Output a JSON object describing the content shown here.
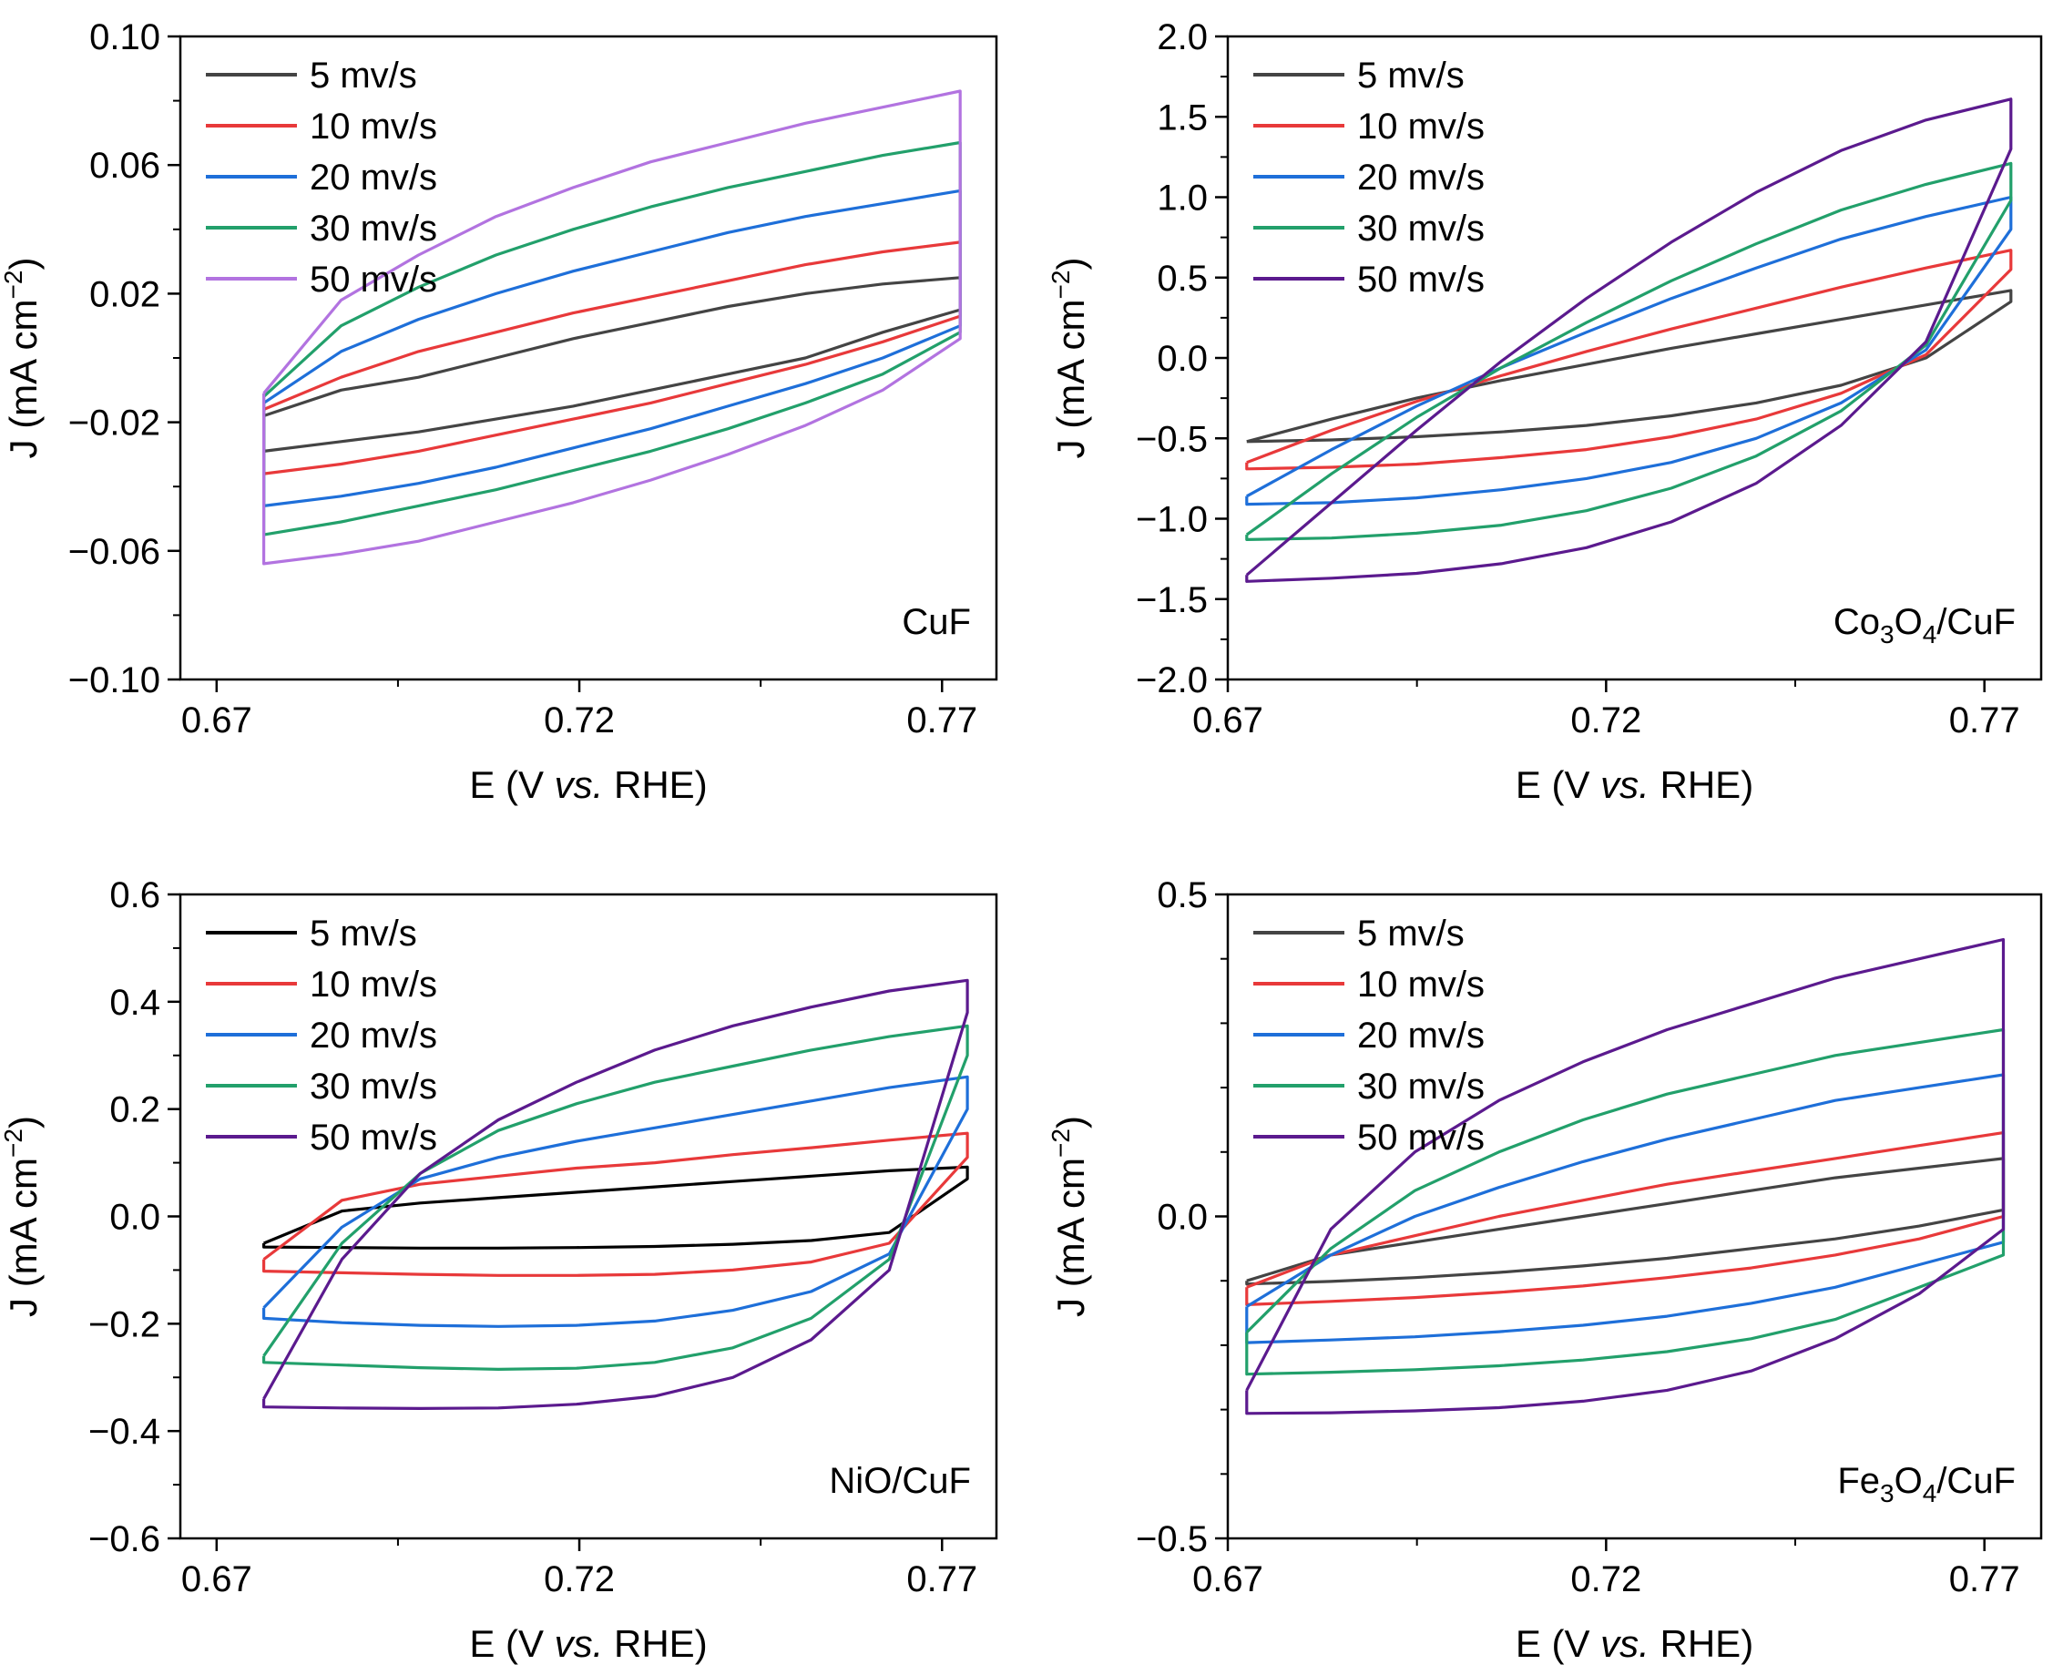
{
  "chart_data": [
    {
      "type": "line",
      "sample_label": {
        "main": "CuF"
      },
      "xlabel": {
        "pre": "E (V ",
        "italic": "vs.",
        "post": " RHE)"
      },
      "ylabel": {
        "pre": "J (mA cm",
        "sup": "−2",
        "post": ")"
      },
      "xlim": [
        0.665,
        0.7775
      ],
      "ylim": [
        -0.1,
        0.1
      ],
      "xticks": [
        {
          "value": 0.67,
          "label": "0.67"
        },
        {
          "value": 0.72,
          "label": "0.72"
        },
        {
          "value": 0.77,
          "label": "0.77"
        }
      ],
      "yticks": [
        {
          "value": -0.1,
          "label": "−0.10"
        },
        {
          "value": -0.06,
          "label": "−0.06"
        },
        {
          "value": -0.02,
          "label": "−0.02"
        },
        {
          "value": 0.02,
          "label": "0.02"
        },
        {
          "value": 0.06,
          "label": "0.06"
        },
        {
          "value": 0.1,
          "label": "0.10"
        }
      ],
      "legend_position": "top-left",
      "x_range_cv": [
        0.6765,
        0.7725
      ],
      "series": [
        {
          "name": "5 mv/s",
          "color": "#444444",
          "anodic": [
            -0.018,
            -0.01,
            -0.006,
            0.0,
            0.006,
            0.011,
            0.016,
            0.02,
            0.023,
            0.025
          ],
          "cathodic": [
            0.015,
            0.008,
            0.0,
            -0.005,
            -0.01,
            -0.015,
            -0.019,
            -0.023,
            -0.026,
            -0.029
          ]
        },
        {
          "name": "10 mv/s",
          "color": "#e8393a",
          "anodic": [
            -0.016,
            -0.006,
            0.002,
            0.008,
            0.014,
            0.019,
            0.024,
            0.029,
            0.033,
            0.036
          ],
          "cathodic": [
            0.013,
            0.005,
            -0.002,
            -0.008,
            -0.014,
            -0.019,
            -0.024,
            -0.029,
            -0.033,
            -0.036
          ]
        },
        {
          "name": "20 mv/s",
          "color": "#1e6fd9",
          "anodic": [
            -0.014,
            0.002,
            0.012,
            0.02,
            0.027,
            0.033,
            0.039,
            0.044,
            0.048,
            0.052
          ],
          "cathodic": [
            0.01,
            0.0,
            -0.008,
            -0.015,
            -0.022,
            -0.028,
            -0.034,
            -0.039,
            -0.043,
            -0.046
          ]
        },
        {
          "name": "30 mv/s",
          "color": "#22a06b",
          "anodic": [
            -0.012,
            0.01,
            0.022,
            0.032,
            0.04,
            0.047,
            0.053,
            0.058,
            0.063,
            0.067
          ],
          "cathodic": [
            0.008,
            -0.005,
            -0.014,
            -0.022,
            -0.029,
            -0.035,
            -0.041,
            -0.046,
            -0.051,
            -0.055
          ]
        },
        {
          "name": "50 mv/s",
          "color": "#b273e0",
          "anodic": [
            -0.011,
            0.018,
            0.032,
            0.044,
            0.053,
            0.061,
            0.067,
            0.073,
            0.078,
            0.083
          ],
          "cathodic": [
            0.006,
            -0.01,
            -0.021,
            -0.03,
            -0.038,
            -0.045,
            -0.051,
            -0.057,
            -0.061,
            -0.064
          ]
        }
      ]
    },
    {
      "type": "line",
      "sample_label": {
        "pre": "Co",
        "sub1": "3",
        "mid": "O",
        "sub2": "4",
        "post": "/CuF"
      },
      "xlabel": {
        "pre": "E (V ",
        "italic": "vs.",
        "post": " RHE)"
      },
      "ylabel": {
        "pre": "J (mA cm",
        "sup": "−2",
        "post": ")"
      },
      "xlim": [
        0.67,
        0.7775
      ],
      "ylim": [
        -2.0,
        2.0
      ],
      "xticks": [
        {
          "value": 0.67,
          "label": "0.67"
        },
        {
          "value": 0.72,
          "label": "0.72"
        },
        {
          "value": 0.77,
          "label": "0.77"
        }
      ],
      "yticks": [
        {
          "value": -2.0,
          "label": "−2.0"
        },
        {
          "value": -1.5,
          "label": "−1.5"
        },
        {
          "value": -1.0,
          "label": "−1.0"
        },
        {
          "value": -0.5,
          "label": "−0.5"
        },
        {
          "value": 0.0,
          "label": "0.0"
        },
        {
          "value": 0.5,
          "label": "0.5"
        },
        {
          "value": 1.0,
          "label": "1.0"
        },
        {
          "value": 1.5,
          "label": "1.5"
        },
        {
          "value": 2.0,
          "label": "2.0"
        }
      ],
      "legend_position": "top-left",
      "x_range_cv": [
        0.6725,
        0.7735
      ],
      "series": [
        {
          "name": "5 mv/s",
          "color": "#444444",
          "anodic": [
            -0.52,
            -0.38,
            -0.25,
            -0.14,
            -0.04,
            0.06,
            0.15,
            0.24,
            0.33,
            0.42
          ],
          "cathodic": [
            0.35,
            0.0,
            -0.17,
            -0.28,
            -0.36,
            -0.42,
            -0.46,
            -0.49,
            -0.51,
            -0.52
          ]
        },
        {
          "name": "10 mv/s",
          "color": "#e8393a",
          "anodic": [
            -0.65,
            -0.45,
            -0.27,
            -0.11,
            0.04,
            0.18,
            0.31,
            0.44,
            0.56,
            0.67
          ],
          "cathodic": [
            0.55,
            0.02,
            -0.22,
            -0.38,
            -0.49,
            -0.57,
            -0.62,
            -0.66,
            -0.68,
            -0.69
          ]
        },
        {
          "name": "20 mv/s",
          "color": "#1e6fd9",
          "anodic": [
            -0.86,
            -0.57,
            -0.3,
            -0.06,
            0.16,
            0.37,
            0.56,
            0.74,
            0.88,
            1.0
          ],
          "cathodic": [
            0.8,
            0.05,
            -0.28,
            -0.5,
            -0.65,
            -0.75,
            -0.82,
            -0.87,
            -0.9,
            -0.91
          ]
        },
        {
          "name": "30 mv/s",
          "color": "#22a06b",
          "anodic": [
            -1.1,
            -0.72,
            -0.37,
            -0.06,
            0.22,
            0.48,
            0.71,
            0.92,
            1.08,
            1.21
          ],
          "cathodic": [
            0.98,
            0.08,
            -0.33,
            -0.61,
            -0.81,
            -0.95,
            -1.04,
            -1.09,
            -1.12,
            -1.13
          ]
        },
        {
          "name": "50 mv/s",
          "color": "#5b1a8e",
          "anodic": [
            -1.35,
            -0.9,
            -0.45,
            -0.02,
            0.37,
            0.72,
            1.03,
            1.29,
            1.48,
            1.61
          ],
          "cathodic": [
            1.3,
            0.1,
            -0.42,
            -0.78,
            -1.02,
            -1.18,
            -1.28,
            -1.34,
            -1.37,
            -1.39
          ]
        }
      ]
    },
    {
      "type": "line",
      "sample_label": {
        "main": "NiO/CuF"
      },
      "xlabel": {
        "pre": "E (V ",
        "italic": "vs.",
        "post": " RHE)"
      },
      "ylabel": {
        "pre": "J (mA cm",
        "sup": "−2",
        "post": ")"
      },
      "xlim": [
        0.665,
        0.7775
      ],
      "ylim": [
        -0.6,
        0.6
      ],
      "xticks": [
        {
          "value": 0.67,
          "label": "0.67"
        },
        {
          "value": 0.72,
          "label": "0.72"
        },
        {
          "value": 0.77,
          "label": "0.77"
        }
      ],
      "yticks": [
        {
          "value": -0.6,
          "label": "−0.6"
        },
        {
          "value": -0.4,
          "label": "−0.4"
        },
        {
          "value": -0.2,
          "label": "−0.2"
        },
        {
          "value": 0.0,
          "label": "0.0"
        },
        {
          "value": 0.2,
          "label": "0.2"
        },
        {
          "value": 0.4,
          "label": "0.4"
        },
        {
          "value": 0.6,
          "label": "0.6"
        }
      ],
      "legend_position": "top-left",
      "x_range_cv": [
        0.6765,
        0.7735
      ],
      "series": [
        {
          "name": "5 mv/s",
          "color": "#000000",
          "anodic": [
            -0.05,
            0.01,
            0.025,
            0.035,
            0.045,
            0.055,
            0.065,
            0.075,
            0.085,
            0.092
          ],
          "cathodic": [
            0.07,
            -0.03,
            -0.045,
            -0.052,
            -0.056,
            -0.058,
            -0.059,
            -0.059,
            -0.058,
            -0.057
          ]
        },
        {
          "name": "10 mv/s",
          "color": "#e8393a",
          "anodic": [
            -0.08,
            0.03,
            0.06,
            0.075,
            0.09,
            0.1,
            0.115,
            0.128,
            0.142,
            0.155
          ],
          "cathodic": [
            0.11,
            -0.05,
            -0.085,
            -0.1,
            -0.108,
            -0.11,
            -0.11,
            -0.108,
            -0.105,
            -0.102
          ]
        },
        {
          "name": "20 mv/s",
          "color": "#1e6fd9",
          "anodic": [
            -0.17,
            -0.02,
            0.07,
            0.11,
            0.14,
            0.165,
            0.19,
            0.215,
            0.24,
            0.26
          ],
          "cathodic": [
            0.2,
            -0.07,
            -0.14,
            -0.175,
            -0.195,
            -0.203,
            -0.205,
            -0.203,
            -0.198,
            -0.19
          ]
        },
        {
          "name": "30 mv/s",
          "color": "#22a06b",
          "anodic": [
            -0.26,
            -0.05,
            0.08,
            0.16,
            0.21,
            0.25,
            0.28,
            0.31,
            0.335,
            0.355
          ],
          "cathodic": [
            0.3,
            -0.08,
            -0.19,
            -0.245,
            -0.272,
            -0.283,
            -0.285,
            -0.282,
            -0.277,
            -0.272
          ]
        },
        {
          "name": "50 mv/s",
          "color": "#5b1a8e",
          "anodic": [
            -0.34,
            -0.08,
            0.08,
            0.18,
            0.25,
            0.31,
            0.355,
            0.39,
            0.42,
            0.44
          ],
          "cathodic": [
            0.38,
            -0.1,
            -0.23,
            -0.3,
            -0.335,
            -0.35,
            -0.357,
            -0.358,
            -0.357,
            -0.355
          ]
        }
      ]
    },
    {
      "type": "line",
      "sample_label": {
        "pre": "Fe",
        "sub1": "3",
        "mid": "O",
        "sub2": "4",
        "post": "/CuF"
      },
      "xlabel": {
        "pre": "E (V ",
        "italic": "vs.",
        "post": " RHE)"
      },
      "ylabel": {
        "pre": "J (mA cm",
        "sup": "−2",
        "post": ")"
      },
      "xlim": [
        0.67,
        0.7775
      ],
      "ylim": [
        -0.5,
        0.5
      ],
      "xticks": [
        {
          "value": 0.67,
          "label": "0.67"
        },
        {
          "value": 0.72,
          "label": "0.72"
        },
        {
          "value": 0.77,
          "label": "0.77"
        }
      ],
      "yticks": [
        {
          "value": -0.5,
          "label": "−0.5"
        },
        {
          "value": 0.0,
          "label": "0.0"
        },
        {
          "value": 0.5,
          "label": "0.5"
        }
      ],
      "legend_position": "top-left",
      "x_range_cv": [
        0.6725,
        0.7725
      ],
      "series": [
        {
          "name": "5 mv/s",
          "color": "#444444",
          "anodic": [
            -0.1,
            -0.06,
            -0.04,
            -0.02,
            0.0,
            0.02,
            0.04,
            0.06,
            0.075,
            0.09
          ],
          "cathodic": [
            0.01,
            -0.015,
            -0.035,
            -0.05,
            -0.065,
            -0.077,
            -0.087,
            -0.095,
            -0.101,
            -0.105
          ]
        },
        {
          "name": "10 mv/s",
          "color": "#e8393a",
          "anodic": [
            -0.11,
            -0.06,
            -0.03,
            0.0,
            0.025,
            0.05,
            0.07,
            0.09,
            0.11,
            0.13
          ],
          "cathodic": [
            0.0,
            -0.035,
            -0.06,
            -0.08,
            -0.095,
            -0.108,
            -0.118,
            -0.126,
            -0.132,
            -0.137
          ]
        },
        {
          "name": "20 mv/s",
          "color": "#1e6fd9",
          "anodic": [
            -0.14,
            -0.06,
            0.0,
            0.045,
            0.085,
            0.12,
            0.15,
            0.18,
            0.2,
            0.22
          ],
          "cathodic": [
            -0.04,
            -0.075,
            -0.11,
            -0.135,
            -0.155,
            -0.169,
            -0.179,
            -0.187,
            -0.192,
            -0.196
          ]
        },
        {
          "name": "30 mv/s",
          "color": "#22a06b",
          "anodic": [
            -0.18,
            -0.05,
            0.04,
            0.1,
            0.15,
            0.19,
            0.22,
            0.25,
            0.27,
            0.29
          ],
          "cathodic": [
            -0.06,
            -0.11,
            -0.16,
            -0.19,
            -0.21,
            -0.223,
            -0.232,
            -0.238,
            -0.242,
            -0.245
          ]
        },
        {
          "name": "50 mv/s",
          "color": "#5b1a8e",
          "anodic": [
            -0.27,
            -0.02,
            0.1,
            0.18,
            0.24,
            0.29,
            0.33,
            0.37,
            0.4,
            0.43
          ],
          "cathodic": [
            -0.02,
            -0.12,
            -0.19,
            -0.24,
            -0.27,
            -0.287,
            -0.297,
            -0.302,
            -0.305,
            -0.306
          ]
        }
      ]
    }
  ]
}
